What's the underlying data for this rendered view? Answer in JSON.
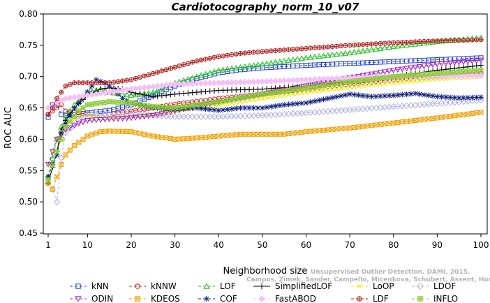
{
  "chart_data": {
    "type": "line",
    "title": "Cardiotocography_norm_10_v07",
    "xlabel": "Neighborhood size",
    "ylabel": "ROC AUC",
    "xlim": [
      1,
      100
    ],
    "ylim": [
      0.45,
      0.8
    ],
    "xticks": [
      1,
      10,
      20,
      30,
      40,
      50,
      60,
      70,
      80,
      90,
      100
    ],
    "yticks": [
      "0.45",
      "0.50",
      "0.55",
      "0.60",
      "0.65",
      "0.70",
      "0.75",
      "0.80"
    ],
    "grid": false,
    "legend_position": "bottom",
    "series": [
      {
        "name": "kNN",
        "color": "#1f3fd6",
        "marker": "square",
        "dash": "4,3",
        "points": [
          [
            1,
            0.635
          ],
          [
            2,
            0.655
          ],
          [
            3,
            0.655
          ],
          [
            4,
            0.64
          ],
          [
            5,
            0.638
          ],
          [
            8,
            0.64
          ],
          [
            10,
            0.642
          ],
          [
            15,
            0.646
          ],
          [
            20,
            0.655
          ],
          [
            25,
            0.67
          ],
          [
            30,
            0.685
          ],
          [
            35,
            0.697
          ],
          [
            40,
            0.706
          ],
          [
            45,
            0.711
          ],
          [
            50,
            0.714
          ],
          [
            60,
            0.718
          ],
          [
            70,
            0.721
          ],
          [
            80,
            0.724
          ],
          [
            90,
            0.727
          ],
          [
            100,
            0.73
          ]
        ]
      },
      {
        "name": "kNNW",
        "color": "#d62020",
        "marker": "circle",
        "dash": "4,3",
        "points": [
          [
            1,
            0.64
          ],
          [
            2,
            0.645
          ],
          [
            3,
            0.65
          ],
          [
            4,
            0.655
          ],
          [
            5,
            0.645
          ],
          [
            8,
            0.642
          ],
          [
            10,
            0.64
          ],
          [
            15,
            0.64
          ],
          [
            20,
            0.645
          ],
          [
            25,
            0.65
          ],
          [
            30,
            0.656
          ],
          [
            40,
            0.665
          ],
          [
            50,
            0.672
          ],
          [
            60,
            0.68
          ],
          [
            70,
            0.688
          ],
          [
            80,
            0.695
          ],
          [
            90,
            0.7
          ],
          [
            100,
            0.705
          ]
        ]
      },
      {
        "name": "LOF",
        "color": "#22c222",
        "marker": "triangle",
        "dash": "4,3",
        "points": [
          [
            1,
            0.54
          ],
          [
            2,
            0.57
          ],
          [
            3,
            0.6
          ],
          [
            4,
            0.62
          ],
          [
            5,
            0.635
          ],
          [
            7,
            0.655
          ],
          [
            10,
            0.675
          ],
          [
            13,
            0.68
          ],
          [
            15,
            0.675
          ],
          [
            20,
            0.67
          ],
          [
            25,
            0.675
          ],
          [
            30,
            0.69
          ],
          [
            35,
            0.7
          ],
          [
            40,
            0.71
          ],
          [
            50,
            0.72
          ],
          [
            60,
            0.73
          ],
          [
            70,
            0.738
          ],
          [
            80,
            0.748
          ],
          [
            90,
            0.756
          ],
          [
            100,
            0.762
          ]
        ]
      },
      {
        "name": "SimplifiedLOF",
        "color": "#000000",
        "marker": "plus",
        "dash": "",
        "points": [
          [
            1,
            0.53
          ],
          [
            2,
            0.555
          ],
          [
            3,
            0.58
          ],
          [
            4,
            0.615
          ],
          [
            5,
            0.63
          ],
          [
            7,
            0.65
          ],
          [
            10,
            0.67
          ],
          [
            13,
            0.68
          ],
          [
            15,
            0.682
          ],
          [
            18,
            0.68
          ],
          [
            20,
            0.675
          ],
          [
            25,
            0.668
          ],
          [
            30,
            0.672
          ],
          [
            35,
            0.675
          ],
          [
            40,
            0.678
          ],
          [
            45,
            0.679
          ],
          [
            50,
            0.68
          ],
          [
            60,
            0.685
          ],
          [
            70,
            0.692
          ],
          [
            80,
            0.7
          ],
          [
            90,
            0.71
          ],
          [
            100,
            0.718
          ]
        ]
      },
      {
        "name": "LoOP",
        "color": "#e8e800",
        "marker": "cross",
        "dash": "4,3",
        "points": [
          [
            1,
            0.56
          ],
          [
            3,
            0.6
          ],
          [
            5,
            0.625
          ],
          [
            8,
            0.635
          ],
          [
            10,
            0.638
          ],
          [
            15,
            0.635
          ],
          [
            20,
            0.636
          ],
          [
            25,
            0.64
          ],
          [
            30,
            0.645
          ],
          [
            40,
            0.655
          ],
          [
            50,
            0.665
          ],
          [
            60,
            0.675
          ],
          [
            70,
            0.683
          ],
          [
            80,
            0.69
          ],
          [
            90,
            0.696
          ],
          [
            100,
            0.7
          ]
        ]
      },
      {
        "name": "LDOF",
        "color": "#b0b0e8",
        "marker": "diamond",
        "dash": "4,3",
        "points": [
          [
            1,
            0.54
          ],
          [
            2,
            0.52
          ],
          [
            3,
            0.5
          ],
          [
            4,
            0.57
          ],
          [
            5,
            0.61
          ],
          [
            8,
            0.63
          ],
          [
            10,
            0.64
          ],
          [
            15,
            0.64
          ],
          [
            20,
            0.64
          ],
          [
            25,
            0.638
          ],
          [
            30,
            0.636
          ],
          [
            40,
            0.636
          ],
          [
            50,
            0.638
          ],
          [
            60,
            0.642
          ],
          [
            70,
            0.647
          ],
          [
            80,
            0.652
          ],
          [
            90,
            0.657
          ],
          [
            100,
            0.662
          ]
        ]
      },
      {
        "name": "ODIN",
        "color": "#a020c0",
        "marker": "triangle-down",
        "dash": "4,3",
        "points": [
          [
            1,
            0.56
          ],
          [
            3,
            0.6
          ],
          [
            5,
            0.615
          ],
          [
            8,
            0.625
          ],
          [
            10,
            0.63
          ],
          [
            15,
            0.632
          ],
          [
            20,
            0.634
          ],
          [
            25,
            0.638
          ],
          [
            30,
            0.645
          ],
          [
            40,
            0.66
          ],
          [
            50,
            0.672
          ],
          [
            60,
            0.685
          ],
          [
            70,
            0.698
          ],
          [
            80,
            0.71
          ],
          [
            90,
            0.72
          ],
          [
            100,
            0.726
          ]
        ]
      },
      {
        "name": "KDEOS",
        "color": "#f0a000",
        "marker": "square-x",
        "dash": "4,3",
        "points": [
          [
            1,
            0.53
          ],
          [
            2,
            0.52
          ],
          [
            3,
            0.54
          ],
          [
            4,
            0.56
          ],
          [
            5,
            0.575
          ],
          [
            7,
            0.59
          ],
          [
            10,
            0.605
          ],
          [
            13,
            0.612
          ],
          [
            15,
            0.613
          ],
          [
            20,
            0.612
          ],
          [
            25,
            0.605
          ],
          [
            30,
            0.6
          ],
          [
            35,
            0.602
          ],
          [
            40,
            0.605
          ],
          [
            45,
            0.608
          ],
          [
            50,
            0.608
          ],
          [
            55,
            0.608
          ],
          [
            60,
            0.612
          ],
          [
            70,
            0.618
          ],
          [
            80,
            0.626
          ],
          [
            90,
            0.634
          ],
          [
            100,
            0.643
          ]
        ]
      },
      {
        "name": "COF",
        "color": "#102080",
        "marker": "star",
        "dash": "4,3",
        "points": [
          [
            1,
            0.54
          ],
          [
            2,
            0.56
          ],
          [
            3,
            0.575
          ],
          [
            4,
            0.61
          ],
          [
            5,
            0.625
          ],
          [
            7,
            0.65
          ],
          [
            10,
            0.675
          ],
          [
            12,
            0.695
          ],
          [
            14,
            0.69
          ],
          [
            16,
            0.68
          ],
          [
            18,
            0.665
          ],
          [
            20,
            0.658
          ],
          [
            25,
            0.65
          ],
          [
            30,
            0.648
          ],
          [
            35,
            0.65
          ],
          [
            40,
            0.646
          ],
          [
            45,
            0.65
          ],
          [
            50,
            0.65
          ],
          [
            55,
            0.655
          ],
          [
            60,
            0.658
          ],
          [
            65,
            0.665
          ],
          [
            70,
            0.672
          ],
          [
            75,
            0.668
          ],
          [
            80,
            0.67
          ],
          [
            85,
            0.673
          ],
          [
            90,
            0.668
          ],
          [
            95,
            0.666
          ],
          [
            100,
            0.667
          ]
        ]
      },
      {
        "name": "FastABOD",
        "color": "#f6c0f6",
        "marker": "diamond-filled",
        "dash": "4,3",
        "points": [
          [
            1,
            0.65
          ],
          [
            2,
            0.652
          ],
          [
            3,
            0.66
          ],
          [
            5,
            0.665
          ],
          [
            8,
            0.668
          ],
          [
            10,
            0.67
          ],
          [
            15,
            0.675
          ],
          [
            20,
            0.68
          ],
          [
            30,
            0.688
          ],
          [
            40,
            0.69
          ],
          [
            50,
            0.692
          ],
          [
            60,
            0.695
          ],
          [
            70,
            0.698
          ],
          [
            80,
            0.7
          ],
          [
            90,
            0.701
          ],
          [
            100,
            0.702
          ]
        ]
      },
      {
        "name": "LDF",
        "color": "#b02020",
        "marker": "circle-plus",
        "dash": "4,3",
        "points": [
          [
            1,
            0.64
          ],
          [
            2,
            0.65
          ],
          [
            3,
            0.665
          ],
          [
            4,
            0.675
          ],
          [
            5,
            0.685
          ],
          [
            7,
            0.69
          ],
          [
            10,
            0.69
          ],
          [
            15,
            0.69
          ],
          [
            20,
            0.695
          ],
          [
            25,
            0.705
          ],
          [
            30,
            0.715
          ],
          [
            35,
            0.725
          ],
          [
            40,
            0.732
          ],
          [
            45,
            0.737
          ],
          [
            50,
            0.74
          ],
          [
            60,
            0.745
          ],
          [
            70,
            0.75
          ],
          [
            80,
            0.754
          ],
          [
            90,
            0.757
          ],
          [
            100,
            0.759
          ]
        ]
      },
      {
        "name": "INFLO",
        "color": "#88cc33",
        "marker": "square-star",
        "dash": "4,3",
        "points": [
          [
            1,
            0.535
          ],
          [
            3,
            0.58
          ],
          [
            5,
            0.62
          ],
          [
            8,
            0.645
          ],
          [
            10,
            0.655
          ],
          [
            15,
            0.66
          ],
          [
            20,
            0.658
          ],
          [
            25,
            0.652
          ],
          [
            30,
            0.65
          ],
          [
            40,
            0.66
          ],
          [
            50,
            0.672
          ],
          [
            60,
            0.682
          ],
          [
            70,
            0.692
          ],
          [
            80,
            0.7
          ],
          [
            90,
            0.705
          ],
          [
            100,
            0.71
          ]
        ]
      }
    ],
    "watermark": [
      "Unsupervised Outlier Detection. DAMI, 2015.",
      "Campos, Zimek, Sander, Campello, Micenkova, Schubert, Assent, Houle"
    ]
  }
}
